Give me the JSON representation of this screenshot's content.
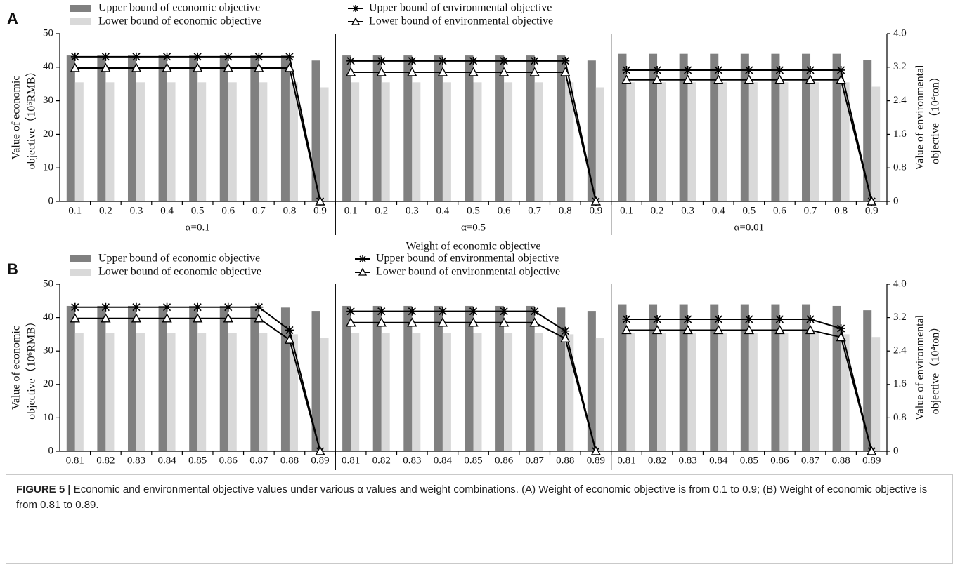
{
  "chart_data": [
    {
      "type": "combo",
      "panel": "A",
      "categories": [
        "0.1",
        "0.2",
        "0.3",
        "0.4",
        "0.5",
        "0.6",
        "0.7",
        "0.8",
        "0.9"
      ],
      "groups": [
        "α=0.1",
        "α=0.5",
        "α=0.01"
      ],
      "x_label": "Weight of economic objective",
      "y_label": [
        "Value of economic",
        "objective（10⁶RMB）"
      ],
      "y2_label": [
        "Value of environmental",
        "objective（10⁴ton）"
      ],
      "ylim": [
        0,
        50
      ],
      "yticks": [
        0,
        10,
        20,
        30,
        40,
        50
      ],
      "y2lim": [
        0,
        4
      ],
      "y2ticks": [
        0,
        0.8,
        1.6,
        2.4,
        3.2,
        {
          "value": 4,
          "label": "4.0"
        }
      ],
      "series": [
        {
          "name": "Upper bound of economic objective",
          "type": "bar",
          "color": "#808080",
          "values": [
            [
              43.5,
              43.5,
              43.5,
              43.5,
              43.5,
              43.5,
              43.5,
              43.5,
              42
            ],
            [
              43.5,
              43.5,
              43.5,
              43.5,
              43.5,
              43.5,
              43.5,
              43.5,
              42
            ],
            [
              44,
              44,
              44,
              44,
              44,
              44,
              44,
              44,
              42.2
            ]
          ]
        },
        {
          "name": "Lower bound of economic objective",
          "type": "bar",
          "color": "#d9d9d9",
          "values": [
            [
              35.5,
              35.5,
              35.5,
              35.5,
              35.5,
              35.5,
              35.5,
              35.5,
              34
            ],
            [
              35.5,
              35.5,
              35.5,
              35.5,
              35.5,
              35.5,
              35.5,
              35.5,
              34
            ],
            [
              35.5,
              35.5,
              35.5,
              35.5,
              35.5,
              35.5,
              35.5,
              35.5,
              34.2
            ]
          ]
        },
        {
          "name": "Upper bound of environmental objective",
          "type": "line",
          "marker": "star",
          "color": "#000000",
          "axis": "y2",
          "values": [
            [
              3.45,
              3.45,
              3.45,
              3.45,
              3.45,
              3.45,
              3.45,
              3.45,
              0
            ],
            [
              3.35,
              3.35,
              3.35,
              3.35,
              3.35,
              3.35,
              3.35,
              3.35,
              0
            ],
            [
              3.13,
              3.13,
              3.13,
              3.13,
              3.13,
              3.13,
              3.13,
              3.13,
              0
            ]
          ]
        },
        {
          "name": "Lower bound of environmental objective",
          "type": "line",
          "marker": "triangle",
          "color": "#000000",
          "axis": "y2",
          "values": [
            [
              3.18,
              3.18,
              3.18,
              3.18,
              3.18,
              3.18,
              3.18,
              3.18,
              0
            ],
            [
              3.08,
              3.08,
              3.08,
              3.08,
              3.08,
              3.08,
              3.08,
              3.08,
              0
            ],
            [
              2.9,
              2.9,
              2.9,
              2.9,
              2.9,
              2.9,
              2.9,
              2.9,
              0
            ]
          ]
        }
      ]
    },
    {
      "type": "combo",
      "panel": "B",
      "categories": [
        "0.81",
        "0.82",
        "0.83",
        "0.84",
        "0.85",
        "0.86",
        "0.87",
        "0.88",
        "0.89"
      ],
      "groups": [
        "α=0.1",
        "α=0.5",
        "α=0.01"
      ],
      "x_label": "Weight of economic objective",
      "y_label": [
        "Value of economic",
        "objective（10⁶RMB）"
      ],
      "y2_label": [
        "Value of environmental",
        "objective（10⁴ton）"
      ],
      "ylim": [
        0,
        50
      ],
      "yticks": [
        0,
        10,
        20,
        30,
        40,
        50
      ],
      "y2lim": [
        0,
        4
      ],
      "y2ticks": [
        0,
        0.8,
        1.6,
        2.4,
        3.2,
        {
          "value": 4,
          "label": "4.0"
        }
      ],
      "series": [
        {
          "name": "Upper bound of economic objective",
          "type": "bar",
          "color": "#808080",
          "values": [
            [
              43.5,
              43.5,
              43.5,
              43.5,
              43.5,
              43.5,
              43.5,
              43,
              42
            ],
            [
              43.5,
              43.5,
              43.5,
              43.5,
              43.5,
              43.5,
              43.5,
              43,
              42
            ],
            [
              44,
              44,
              44,
              44,
              44,
              44,
              44,
              43.5,
              42.2
            ]
          ]
        },
        {
          "name": "Lower bound of economic objective",
          "type": "bar",
          "color": "#d9d9d9",
          "values": [
            [
              35.5,
              35.5,
              35.5,
              35.5,
              35.5,
              35.5,
              35.5,
              35,
              34
            ],
            [
              35.5,
              35.5,
              35.5,
              35.5,
              35.5,
              35.5,
              35.5,
              35,
              34
            ],
            [
              35.5,
              35.5,
              35.5,
              35.5,
              35.5,
              35.5,
              35.5,
              35,
              34.2
            ]
          ]
        },
        {
          "name": "Upper bound of environmental objective",
          "type": "line",
          "marker": "star",
          "color": "#000000",
          "axis": "y2",
          "values": [
            [
              3.45,
              3.45,
              3.45,
              3.45,
              3.45,
              3.45,
              3.45,
              2.9,
              0
            ],
            [
              3.35,
              3.35,
              3.35,
              3.35,
              3.35,
              3.35,
              3.35,
              2.88,
              0
            ],
            [
              3.16,
              3.16,
              3.16,
              3.16,
              3.16,
              3.16,
              3.16,
              2.94,
              0
            ]
          ]
        },
        {
          "name": "Lower bound of environmental objective",
          "type": "line",
          "marker": "triangle",
          "color": "#000000",
          "axis": "y2",
          "values": [
            [
              3.18,
              3.18,
              3.18,
              3.18,
              3.18,
              3.18,
              3.18,
              2.67,
              0
            ],
            [
              3.08,
              3.08,
              3.08,
              3.08,
              3.08,
              3.08,
              3.08,
              2.7,
              0
            ],
            [
              2.9,
              2.9,
              2.9,
              2.9,
              2.9,
              2.9,
              2.9,
              2.73,
              0
            ]
          ]
        }
      ]
    }
  ],
  "caption": {
    "label": "FIGURE 5 |",
    "text": "Economic and environmental objective values under various α values and weight combinations. (A) Weight of economic objective is from 0.1 to 0.9; (B) Weight of economic objective is from 0.81 to 0.89."
  }
}
